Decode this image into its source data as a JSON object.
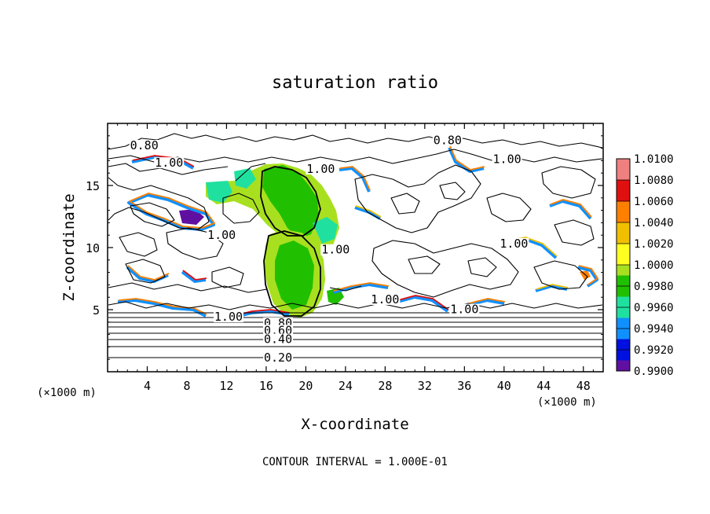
{
  "chart_data": {
    "type": "heatmap",
    "title": "saturation ratio",
    "xlabel": "X-coordinate",
    "ylabel": "Z-coordinate",
    "x_unit": "(×1000 m)",
    "xlim": [
      0,
      50
    ],
    "ylim": [
      0,
      20
    ],
    "x_ticks": [
      "4",
      "8",
      "12",
      "16",
      "20",
      "24",
      "28",
      "32",
      "36",
      "40",
      "44",
      "48"
    ],
    "y_ticks": [
      "5",
      "10",
      "15"
    ],
    "contour_interval_text": "CONTOUR INTERVAL = 1.000E-01",
    "contour_labels": [
      {
        "text": "0.80",
        "x": 3.7,
        "y": 18.1
      },
      {
        "text": "1.00",
        "x": 6.2,
        "y": 16.7
      },
      {
        "text": "0.80",
        "x": 34.3,
        "y": 18.5
      },
      {
        "text": "1.00",
        "x": 40.3,
        "y": 17.0
      },
      {
        "text": "1.00",
        "x": 21.5,
        "y": 16.2
      },
      {
        "text": "1.00",
        "x": 11.5,
        "y": 10.9
      },
      {
        "text": "1.00",
        "x": 23.0,
        "y": 9.7
      },
      {
        "text": "1.00",
        "x": 41.0,
        "y": 10.2
      },
      {
        "text": "1.00",
        "x": 28.0,
        "y": 5.7
      },
      {
        "text": "1.00",
        "x": 36.0,
        "y": 4.9
      },
      {
        "text": "1.00",
        "x": 12.2,
        "y": 4.3
      },
      {
        "text": "0.80",
        "x": 17.2,
        "y": 3.8
      },
      {
        "text": "0.60",
        "x": 17.2,
        "y": 3.2
      },
      {
        "text": "0.40",
        "x": 17.2,
        "y": 2.5
      },
      {
        "text": "0.20",
        "x": 17.2,
        "y": 1.0
      }
    ],
    "colorbar": {
      "levels": [
        "1.0100",
        "1.0080",
        "1.0060",
        "1.0040",
        "1.0020",
        "1.0000",
        "0.9980",
        "0.9960",
        "0.9940",
        "0.9920",
        "0.9900"
      ],
      "colors": [
        "#f08080",
        "#e01010",
        "#ff8000",
        "#f0c000",
        "#ffff20",
        "#a8e020",
        "#20c000",
        "#20e0a0",
        "#1090ff",
        "#0010e0",
        "#6010a0"
      ]
    }
  }
}
